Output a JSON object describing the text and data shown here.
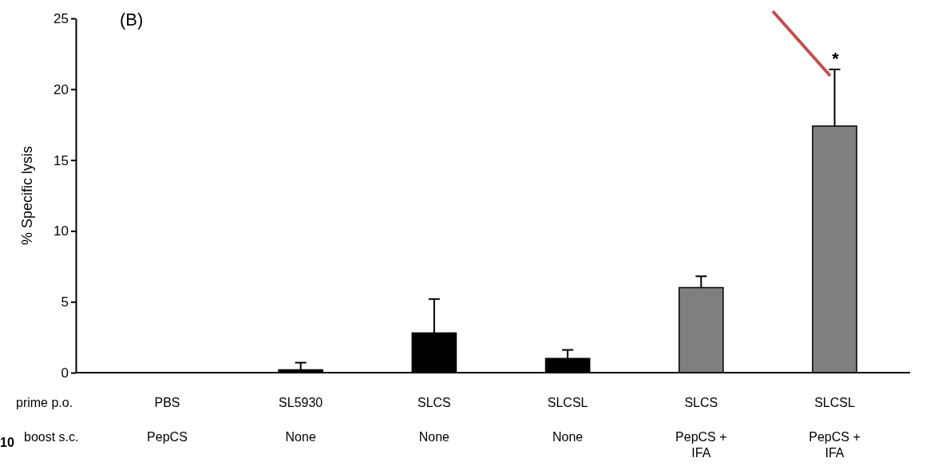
{
  "chart_data": {
    "type": "bar",
    "ylabel": "% Specific lysis",
    "categories": [
      "PBS\nPepCS",
      "SL5930\nNone",
      "SLCS\nNone",
      "SLCSL\nNone",
      "SLCS\nPepCS +\nIFA",
      "SLCSL\nPepCS +\nIFA"
    ],
    "values": [
      0,
      0.2,
      2.8,
      1.0,
      6.0,
      17.4
    ],
    "colors": [
      "#000000",
      "#000000",
      "#000000",
      "#000000",
      "#7f7f7f",
      "#7f7f7f"
    ],
    "errors": [
      null,
      [
        0.2,
        0.7
      ],
      [
        2.8,
        5.2
      ],
      [
        1.0,
        1.6
      ],
      [
        6.0,
        6.8
      ],
      [
        17.4,
        21.4
      ]
    ],
    "ylim": [
      0,
      25
    ],
    "yticks": [
      0,
      5,
      10,
      15,
      20,
      25
    ],
    "grid": false,
    "annotations": [
      "(B)",
      "*",
      "prime p.o.",
      "boost s.c.",
      "10"
    ]
  }
}
